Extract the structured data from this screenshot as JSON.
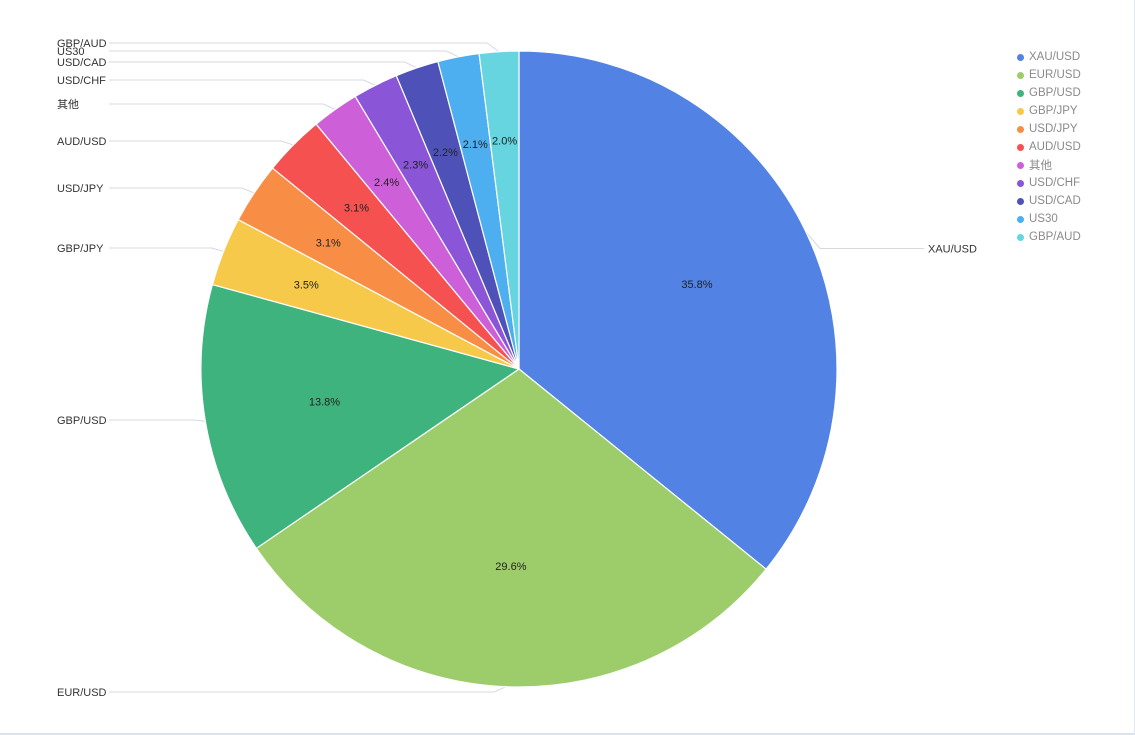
{
  "chart_data": {
    "type": "pie",
    "legend_position": "top-right",
    "slices": [
      {
        "label": "XAU/USD",
        "value": 35.8,
        "pct_label": "35.8%",
        "color": "#5282e3"
      },
      {
        "label": "EUR/USD",
        "value": 29.6,
        "pct_label": "29.6%",
        "color": "#9dcd6a"
      },
      {
        "label": "GBP/USD",
        "value": 13.8,
        "pct_label": "13.8%",
        "color": "#3fb37d"
      },
      {
        "label": "GBP/JPY",
        "value": 3.5,
        "pct_label": "3.5%",
        "color": "#f7c94b"
      },
      {
        "label": "USD/JPY",
        "value": 3.1,
        "pct_label": "3.1%",
        "color": "#f88e45"
      },
      {
        "label": "AUD/USD",
        "value": 3.1,
        "pct_label": "3.1%",
        "color": "#f45150"
      },
      {
        "label": "其他",
        "value": 2.4,
        "pct_label": "2.4%",
        "color": "#cd60d8"
      },
      {
        "label": "USD/CHF",
        "value": 2.3,
        "pct_label": "2.3%",
        "color": "#8a55d6"
      },
      {
        "label": "USD/CAD",
        "value": 2.2,
        "pct_label": "2.2%",
        "color": "#4e52b8"
      },
      {
        "label": "US30",
        "value": 2.1,
        "pct_label": "2.1%",
        "color": "#4daef0"
      },
      {
        "label": "GBP/AUD",
        "value": 2.0,
        "pct_label": "2.0%",
        "color": "#66d5df"
      }
    ]
  }
}
